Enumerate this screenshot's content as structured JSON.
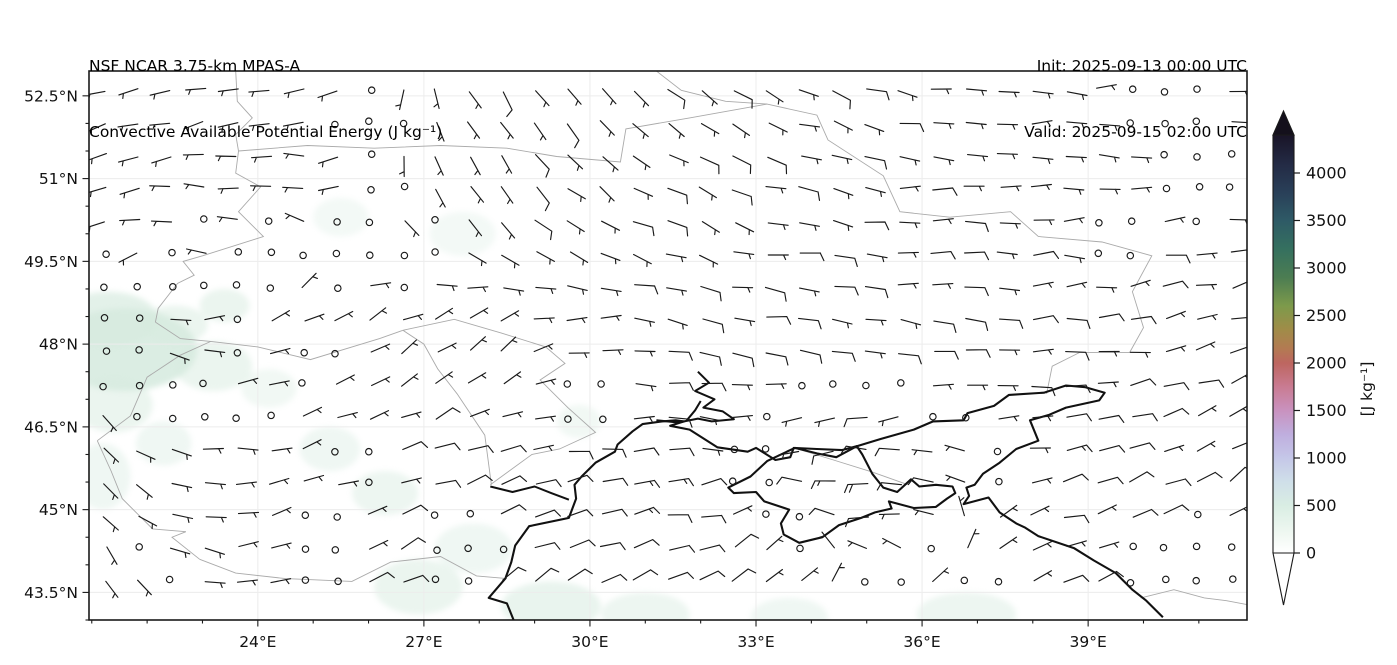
{
  "header": {
    "model_line": "NSF NCAR 3.75-km MPAS-A",
    "product_line": "Convective Available Potential Energy (J kg⁻¹)",
    "init_line": "Init: 2025-09-13 00:00 UTC",
    "valid_line": "Valid: 2025-09-15 02:00 UTC"
  },
  "chart_data": {
    "type": "map",
    "projection": "plate-carree",
    "title": "Convective Available Potential Energy (J kg⁻¹)",
    "model": "NSF NCAR 3.75-km MPAS-A",
    "extent": {
      "lon_min": 20.95,
      "lon_max": 41.87,
      "lat_min": 43.0,
      "lat_max": 52.95
    },
    "x_ticks": [
      {
        "label": "24°E",
        "value": 24
      },
      {
        "label": "27°E",
        "value": 27
      },
      {
        "label": "30°E",
        "value": 30
      },
      {
        "label": "33°E",
        "value": 33
      },
      {
        "label": "36°E",
        "value": 36
      },
      {
        "label": "39°E",
        "value": 39
      }
    ],
    "y_ticks": [
      {
        "label": "52.5°N",
        "value": 52.5
      },
      {
        "label": "51°N",
        "value": 51
      },
      {
        "label": "49.5°N",
        "value": 49.5
      },
      {
        "label": "48°N",
        "value": 48
      },
      {
        "label": "46.5°N",
        "value": 46.5
      },
      {
        "label": "45°N",
        "value": 45
      },
      {
        "label": "43.5°N",
        "value": 43.5
      }
    ],
    "minor_step_lon": 1,
    "minor_step_lat": 0.5,
    "grid_on": true,
    "grid_color": "#ececec",
    "frame_color": "#1a1a1a",
    "colorbar": {
      "label": "[J kg⁻¹]",
      "orientation": "vertical",
      "extend": "both",
      "ticks": [
        {
          "label": "0",
          "value": 0
        },
        {
          "label": "500",
          "value": 500
        },
        {
          "label": "1000",
          "value": 1000
        },
        {
          "label": "1500",
          "value": 1500
        },
        {
          "label": "2000",
          "value": 2000
        },
        {
          "label": "2500",
          "value": 2500
        },
        {
          "label": "3000",
          "value": 3000
        },
        {
          "label": "3500",
          "value": 3500
        },
        {
          "label": "4000",
          "value": 4000
        }
      ],
      "vmax_display": 4400,
      "stops": [
        {
          "v": 0,
          "c": "#ffffff"
        },
        {
          "v": 200,
          "c": "#f0f8f2"
        },
        {
          "v": 500,
          "c": "#d9ede3"
        },
        {
          "v": 750,
          "c": "#cfdfe9"
        },
        {
          "v": 1000,
          "c": "#c5c7e8"
        },
        {
          "v": 1250,
          "c": "#bfaede"
        },
        {
          "v": 1500,
          "c": "#c992bf"
        },
        {
          "v": 1750,
          "c": "#c97b92"
        },
        {
          "v": 2000,
          "c": "#bd6660"
        },
        {
          "v": 2150,
          "c": "#b37a52"
        },
        {
          "v": 2350,
          "c": "#a08c48"
        },
        {
          "v": 2600,
          "c": "#7d9a4b"
        },
        {
          "v": 2900,
          "c": "#4c7d52"
        },
        {
          "v": 3200,
          "c": "#35705f"
        },
        {
          "v": 3500,
          "c": "#2e5a66"
        },
        {
          "v": 3800,
          "c": "#293f58"
        },
        {
          "v": 4100,
          "c": "#232a44"
        },
        {
          "v": 4400,
          "c": "#191427"
        }
      ],
      "over_color": "#14101c",
      "under_color": "#ffffff"
    },
    "shade_color": "#d7ebe0",
    "shade_blobs": [
      [
        21.6,
        47.9,
        1.3,
        0.75,
        0.9
      ],
      [
        21.3,
        48.45,
        0.9,
        0.5,
        0.7
      ],
      [
        22.5,
        48.35,
        0.6,
        0.35,
        0.5
      ],
      [
        23.4,
        48.7,
        0.45,
        0.3,
        0.5
      ],
      [
        21.4,
        46.9,
        0.7,
        0.5,
        0.5
      ],
      [
        22.3,
        46.2,
        0.5,
        0.4,
        0.4
      ],
      [
        24.2,
        47.2,
        0.5,
        0.35,
        0.35
      ],
      [
        25.3,
        46.1,
        0.55,
        0.4,
        0.4
      ],
      [
        26.3,
        45.3,
        0.6,
        0.4,
        0.45
      ],
      [
        27.9,
        44.3,
        0.7,
        0.45,
        0.4
      ],
      [
        26.9,
        43.6,
        0.8,
        0.5,
        0.5
      ],
      [
        29.3,
        43.25,
        0.9,
        0.45,
        0.55
      ],
      [
        31.0,
        43.1,
        0.8,
        0.4,
        0.45
      ],
      [
        33.6,
        43.05,
        0.7,
        0.35,
        0.4
      ],
      [
        36.8,
        43.1,
        0.9,
        0.4,
        0.45
      ],
      [
        25.5,
        50.3,
        0.5,
        0.35,
        0.3
      ],
      [
        27.7,
        50.0,
        0.6,
        0.4,
        0.3
      ],
      [
        29.8,
        46.6,
        0.4,
        0.3,
        0.35
      ],
      [
        21.2,
        45.6,
        0.5,
        0.6,
        0.4
      ],
      [
        23.2,
        47.6,
        0.7,
        0.45,
        0.5
      ]
    ],
    "wind_field": {
      "barb_color": "#1a1a1a",
      "staff_len": 20,
      "calm_threshold": 3,
      "grid": {
        "cols": 35,
        "rows": 16
      },
      "control_lons": [
        21,
        24.5,
        28,
        31.5,
        35,
        38.5,
        42
      ],
      "control_lats": [
        53,
        50.5,
        48,
        45.75,
        43
      ],
      "dir_from_deg": [
        [
          250,
          260,
          150,
          130,
          105,
          90,
          85
        ],
        [
          255,
          285,
          140,
          115,
          95,
          88,
          85
        ],
        [
          115,
          70,
          50,
          100,
          95,
          90,
          70
        ],
        [
          140,
          75,
          70,
          85,
          268,
          80,
          55
        ],
        [
          150,
          65,
          55,
          65,
          60,
          50,
          45
        ]
      ],
      "speed_kt": [
        [
          6,
          6,
          6,
          7,
          7,
          5,
          4
        ],
        [
          5,
          4,
          6,
          7,
          7,
          6,
          5
        ],
        [
          4,
          4,
          5,
          7,
          9,
          8,
          7
        ],
        [
          5,
          6,
          9,
          11,
          21,
          12,
          8
        ],
        [
          6,
          7,
          11,
          12,
          10,
          6,
          3
        ]
      ],
      "calm_patches": [
        [
          27.6,
          44.25,
          0.9
        ],
        [
          25.2,
          44.2,
          0.8
        ],
        [
          40.9,
          43.7,
          1.3
        ],
        [
          40.4,
          52.5,
          1.1
        ],
        [
          41.0,
          51.0,
          0.9
        ],
        [
          22.9,
          46.9,
          0.8
        ],
        [
          25.9,
          46.05,
          0.6
        ],
        [
          29.9,
          46.95,
          0.55
        ],
        [
          23.6,
          48.05,
          0.55
        ],
        [
          37.1,
          43.25,
          0.9
        ],
        [
          21.8,
          47.3,
          0.7
        ],
        [
          24.8,
          47.9,
          0.5
        ],
        [
          39.5,
          50.1,
          0.6
        ]
      ]
    },
    "coast_color": "#111111",
    "border_color": "#aaaaaa",
    "coastlines": [
      [
        [
          28.62,
          43.0
        ],
        [
          28.5,
          43.3
        ],
        [
          28.17,
          43.4
        ],
        [
          28.47,
          43.75
        ],
        [
          28.58,
          44.05
        ],
        [
          28.65,
          44.35
        ],
        [
          28.9,
          44.7
        ],
        [
          29.62,
          44.85
        ],
        [
          29.75,
          45.2
        ],
        [
          29.72,
          45.45
        ],
        [
          29.85,
          45.6
        ],
        [
          30.1,
          45.85
        ],
        [
          30.45,
          46.05
        ],
        [
          30.5,
          46.18
        ],
        [
          30.77,
          46.42
        ],
        [
          30.95,
          46.55
        ],
        [
          31.3,
          46.6
        ],
        [
          31.55,
          46.62
        ],
        [
          31.7,
          46.6
        ],
        [
          31.45,
          46.52
        ],
        [
          31.8,
          46.45
        ],
        [
          32.3,
          46.13
        ],
        [
          32.85,
          46.05
        ],
        [
          33.0,
          46.12
        ],
        [
          33.35,
          45.9
        ],
        [
          33.62,
          45.95
        ],
        [
          33.68,
          46.12
        ],
        [
          34.1,
          46.1
        ],
        [
          34.55,
          46.08
        ],
        [
          34.82,
          46.15
        ],
        [
          35.25,
          46.28
        ],
        [
          35.85,
          46.45
        ],
        [
          36.2,
          46.6
        ],
        [
          36.75,
          46.62
        ],
        [
          36.82,
          46.75
        ],
        [
          37.3,
          46.88
        ],
        [
          37.57,
          47.08
        ],
        [
          38.2,
          47.12
        ],
        [
          38.6,
          47.25
        ],
        [
          38.95,
          47.22
        ],
        [
          39.3,
          47.12
        ],
        [
          39.2,
          46.98
        ],
        [
          38.6,
          46.85
        ],
        [
          38.3,
          46.72
        ],
        [
          37.95,
          46.62
        ],
        [
          38.1,
          46.25
        ],
        [
          37.7,
          46.1
        ],
        [
          37.4,
          45.85
        ],
        [
          37.1,
          45.65
        ],
        [
          36.95,
          45.45
        ],
        [
          36.8,
          45.4
        ],
        [
          36.85,
          45.25
        ],
        [
          36.75,
          45.1
        ],
        [
          37.2,
          45.22
        ],
        [
          37.4,
          44.95
        ],
        [
          37.7,
          44.75
        ],
        [
          37.85,
          44.68
        ],
        [
          38.1,
          44.52
        ],
        [
          38.75,
          44.3
        ],
        [
          39.1,
          44.08
        ],
        [
          39.5,
          43.85
        ],
        [
          39.8,
          43.55
        ],
        [
          40.05,
          43.35
        ],
        [
          40.35,
          43.05
        ]
      ],
      [
        [
          33.7,
          46.12
        ],
        [
          33.2,
          45.88
        ],
        [
          32.9,
          45.6
        ],
        [
          32.5,
          45.4
        ],
        [
          32.6,
          45.3
        ],
        [
          33.0,
          45.32
        ],
        [
          33.15,
          45.15
        ],
        [
          33.6,
          45.0
        ],
        [
          33.45,
          44.75
        ],
        [
          33.5,
          44.55
        ],
        [
          33.78,
          44.4
        ],
        [
          34.2,
          44.5
        ],
        [
          34.5,
          44.72
        ],
        [
          34.9,
          44.85
        ],
        [
          35.15,
          44.95
        ],
        [
          35.45,
          45.02
        ],
        [
          35.4,
          45.15
        ],
        [
          35.85,
          45.03
        ],
        [
          36.25,
          45.05
        ],
        [
          36.45,
          45.2
        ],
        [
          36.6,
          45.3
        ],
        [
          36.55,
          45.42
        ],
        [
          36.25,
          45.45
        ],
        [
          35.95,
          45.42
        ],
        [
          35.8,
          45.55
        ],
        [
          35.55,
          45.32
        ],
        [
          35.3,
          45.4
        ],
        [
          35.1,
          45.65
        ],
        [
          34.92,
          46.0
        ],
        [
          34.82,
          46.15
        ],
        [
          34.45,
          45.95
        ],
        [
          34.1,
          46.02
        ],
        [
          33.7,
          46.12
        ]
      ]
    ],
    "rivers": [
      [
        [
          31.95,
          47.5
        ],
        [
          32.15,
          47.3
        ],
        [
          31.9,
          47.15
        ],
        [
          32.25,
          47.0
        ],
        [
          32.05,
          46.85
        ],
        [
          32.4,
          46.78
        ],
        [
          32.6,
          46.64
        ],
        [
          32.2,
          46.6
        ],
        [
          31.95,
          46.65
        ],
        [
          31.6,
          46.58
        ],
        [
          31.2,
          46.62
        ]
      ],
      [
        [
          31.75,
          46.62
        ],
        [
          31.9,
          46.8
        ],
        [
          32.0,
          46.97
        ]
      ],
      [
        [
          28.2,
          45.42
        ],
        [
          28.6,
          45.32
        ],
        [
          29.0,
          45.42
        ],
        [
          29.3,
          45.3
        ],
        [
          29.62,
          45.18
        ]
      ]
    ],
    "borders": [
      [
        [
          23.6,
          52.95
        ],
        [
          23.63,
          52.4
        ],
        [
          23.9,
          52.1
        ],
        [
          23.6,
          51.8
        ],
        [
          23.65,
          51.5
        ],
        [
          23.6,
          51.1
        ],
        [
          24.05,
          50.85
        ],
        [
          23.65,
          50.4
        ],
        [
          24.1,
          49.95
        ],
        [
          23.0,
          49.6
        ],
        [
          22.65,
          49.5
        ],
        [
          22.85,
          49.25
        ],
        [
          22.55,
          49.1
        ],
        [
          22.2,
          48.65
        ],
        [
          22.15,
          48.4
        ]
      ],
      [
        [
          22.15,
          48.4
        ],
        [
          22.6,
          48.1
        ],
        [
          23.15,
          48.05
        ],
        [
          24.0,
          47.95
        ],
        [
          24.95,
          47.72
        ],
        [
          26.2,
          48.1
        ],
        [
          26.62,
          48.25
        ]
      ],
      [
        [
          21.1,
          46.25
        ],
        [
          21.7,
          46.7
        ],
        [
          22.0,
          47.4
        ],
        [
          22.6,
          47.8
        ],
        [
          23.15,
          48.05
        ]
      ],
      [
        [
          21.1,
          46.25
        ],
        [
          21.35,
          45.7
        ],
        [
          21.55,
          45.2
        ],
        [
          22.1,
          44.65
        ],
        [
          22.7,
          44.6
        ],
        [
          22.45,
          44.5
        ],
        [
          22.95,
          44.1
        ]
      ],
      [
        [
          22.95,
          44.1
        ],
        [
          23.6,
          43.85
        ],
        [
          24.5,
          43.75
        ],
        [
          25.7,
          43.7
        ],
        [
          26.4,
          44.05
        ],
        [
          27.3,
          44.15
        ],
        [
          27.95,
          43.8
        ],
        [
          28.5,
          43.75
        ]
      ],
      [
        [
          26.62,
          48.25
        ],
        [
          27.0,
          48.0
        ],
        [
          27.25,
          47.55
        ],
        [
          27.6,
          47.1
        ],
        [
          28.1,
          46.35
        ],
        [
          28.22,
          45.45
        ]
      ],
      [
        [
          26.62,
          48.25
        ],
        [
          27.55,
          48.45
        ],
        [
          28.4,
          48.2
        ],
        [
          29.2,
          47.95
        ],
        [
          29.55,
          47.65
        ],
        [
          29.1,
          47.35
        ],
        [
          29.6,
          46.85
        ],
        [
          30.1,
          46.4
        ],
        [
          29.45,
          46.1
        ],
        [
          28.95,
          46.0
        ],
        [
          28.2,
          45.45
        ]
      ],
      [
        [
          23.65,
          51.5
        ],
        [
          24.9,
          51.6
        ],
        [
          26.1,
          51.55
        ],
        [
          27.3,
          51.6
        ],
        [
          28.5,
          51.55
        ],
        [
          29.4,
          51.4
        ],
        [
          30.55,
          51.3
        ],
        [
          30.65,
          51.9
        ],
        [
          31.8,
          52.1
        ],
        [
          33.2,
          52.35
        ],
        [
          34.1,
          52.15
        ],
        [
          34.3,
          51.7
        ],
        [
          35.3,
          51.05
        ],
        [
          35.6,
          50.4
        ],
        [
          36.5,
          50.3
        ],
        [
          37.6,
          50.4
        ],
        [
          38.1,
          49.95
        ],
        [
          39.25,
          49.85
        ],
        [
          40.15,
          49.6
        ],
        [
          39.8,
          48.95
        ],
        [
          40.0,
          48.3
        ],
        [
          39.75,
          47.85
        ],
        [
          38.85,
          47.85
        ],
        [
          38.35,
          47.6
        ],
        [
          38.25,
          47.1
        ]
      ],
      [
        [
          31.2,
          52.95
        ],
        [
          31.65,
          52.6
        ],
        [
          32.45,
          52.4
        ],
        [
          33.2,
          52.35
        ]
      ],
      [
        [
          33.75,
          46.1
        ],
        [
          34.4,
          45.9
        ],
        [
          35.1,
          45.68
        ],
        [
          35.75,
          45.45
        ]
      ],
      [
        [
          39.95,
          43.4
        ],
        [
          40.55,
          43.55
        ],
        [
          41.1,
          43.4
        ],
        [
          41.5,
          43.35
        ],
        [
          41.87,
          43.28
        ]
      ]
    ]
  }
}
